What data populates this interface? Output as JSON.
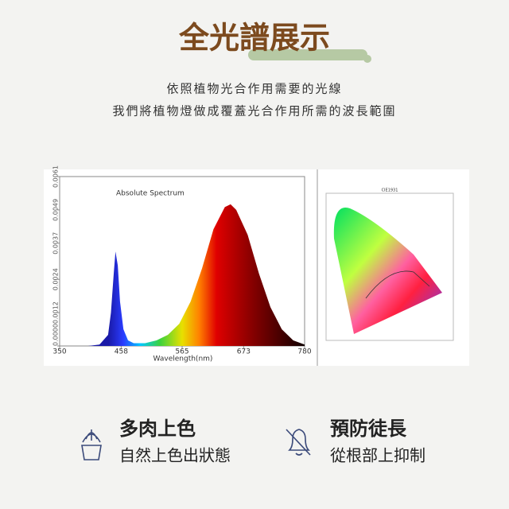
{
  "header": {
    "title": "全光譜展示",
    "lines": [
      "依照植物光合作用需要的光線",
      "我們將植物燈做成覆蓋光合作用所需的波長範圍"
    ]
  },
  "chart_data": {
    "type": "area",
    "title": "Absolute Spectrum",
    "x_label": "Wavelength(nm)",
    "x": [
      400,
      420,
      435,
      440,
      445,
      448,
      452,
      456,
      462,
      470,
      480,
      500,
      520,
      540,
      560,
      580,
      600,
      620,
      640,
      650,
      660,
      680,
      700,
      720,
      740,
      760,
      780
    ],
    "values": [
      0,
      5e-05,
      0.0004,
      0.0012,
      0.0026,
      0.0034,
      0.0029,
      0.0016,
      0.0006,
      0.0002,
      0.0001,
      0.0001,
      0.0002,
      0.0004,
      0.0008,
      0.0016,
      0.0028,
      0.0042,
      0.005,
      0.0051,
      0.0049,
      0.004,
      0.0026,
      0.0014,
      0.0006,
      0.0002,
      5e-05
    ],
    "xlim": [
      350,
      780
    ],
    "ylim": [
      0,
      0.0061
    ],
    "xticks": [
      350,
      458,
      565,
      673,
      780
    ],
    "yticks": [
      {
        "value": 0,
        "label": "0.0000"
      },
      0.0012,
      0.0024,
      0.0037,
      0.0049,
      0.0061
    ]
  },
  "cie": {
    "title": "CIE1931"
  },
  "features": [
    {
      "title": "多肉上色",
      "text": "自然上色出狀態"
    },
    {
      "title": "預防徒長",
      "text": "從根部上抑制"
    }
  ]
}
